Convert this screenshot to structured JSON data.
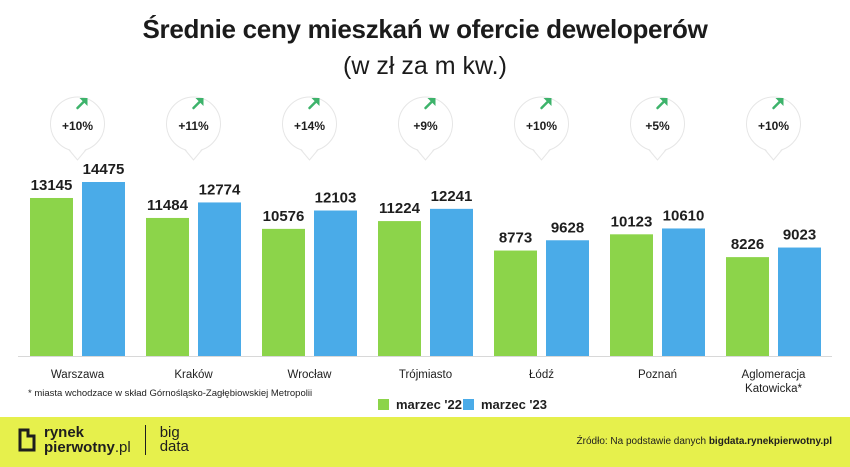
{
  "title": "Średnie ceny mieszkań w ofercie deweloperów",
  "subtitle": "(w zł za m kw.)",
  "chart_data": {
    "type": "bar",
    "categories": [
      "Warszawa",
      "Kraków",
      "Wrocław",
      "Trójmiasto",
      "Łódź",
      "Poznań",
      "Aglomeracja Katowicka*"
    ],
    "series": [
      {
        "name": "marzec '22",
        "values": [
          13145,
          11484,
          10576,
          11224,
          8773,
          10123,
          8226
        ],
        "color": "#8cd44a"
      },
      {
        "name": "marzec '23",
        "values": [
          14475,
          12774,
          12103,
          12241,
          9628,
          10610,
          9023
        ],
        "color": "#4aabe8"
      }
    ],
    "changes": [
      "+10%",
      "+11%",
      "+14%",
      "+9%",
      "+10%",
      "+5%",
      "+10%"
    ],
    "ylim": [
      0,
      14475
    ],
    "legend": "bottom-center",
    "grid": false,
    "arrow_color": "#3db36b"
  },
  "footnote": "* miasta wchodzace w skład Górnośląsko-Zagłębiowskiej Metropolii",
  "footer": {
    "logo_line1": "rynek",
    "logo_line2": "pierwotny",
    "logo_suffix": ".pl",
    "logo_big1": "big",
    "logo_big2": "data",
    "source_prefix": "Źródło: Na podstawie danych ",
    "source_site": "bigdata.rynekpierwotny.pl",
    "background": "#e6f04c"
  }
}
